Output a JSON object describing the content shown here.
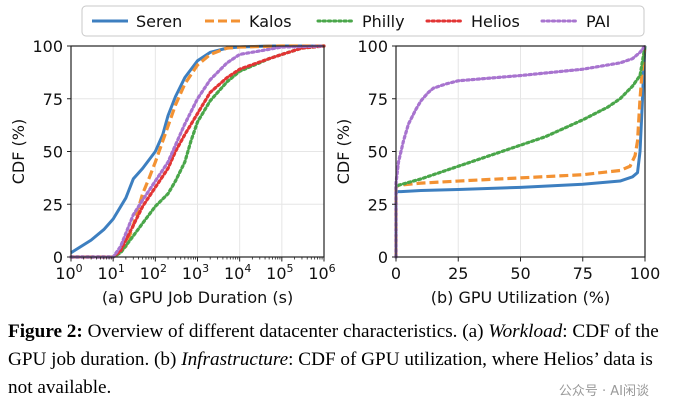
{
  "legend": {
    "entries": [
      {
        "name": "Seren",
        "color": "#3d7fc0",
        "style": "solid"
      },
      {
        "name": "Kalos",
        "color": "#f39233",
        "style": "dashed"
      },
      {
        "name": "Philly",
        "color": "#4aa64a",
        "style": "dotted"
      },
      {
        "name": "Helios",
        "color": "#e23434",
        "style": "dotted"
      },
      {
        "name": "PAI",
        "color": "#a874cf",
        "style": "dotted"
      }
    ],
    "placement": "top, spanning both panels"
  },
  "chart_data": [
    {
      "type": "line",
      "panel_label": "(a) GPU Job Duration (s)",
      "xlabel": "",
      "ylabel": "CDF (%)",
      "xscale": "log",
      "xlim": [
        1,
        1000000
      ],
      "ylim": [
        0,
        100
      ],
      "x_ticks": [
        {
          "value": 1,
          "base": "10",
          "exp": "0"
        },
        {
          "value": 10,
          "base": "10",
          "exp": "1"
        },
        {
          "value": 100,
          "base": "10",
          "exp": "2"
        },
        {
          "value": 1000,
          "base": "10",
          "exp": "3"
        },
        {
          "value": 10000,
          "base": "10",
          "exp": "4"
        },
        {
          "value": 100000,
          "base": "10",
          "exp": "5"
        },
        {
          "value": 1000000,
          "base": "10",
          "exp": "6"
        }
      ],
      "y_ticks": [
        "0",
        "25",
        "50",
        "75",
        "100"
      ],
      "grid": true,
      "series": [
        {
          "name": "Seren",
          "x": [
            1,
            3,
            6,
            10,
            20,
            30,
            50,
            100,
            150,
            200,
            300,
            500,
            1000,
            2000,
            5000,
            10000,
            50000,
            100000,
            1000000
          ],
          "y": [
            2,
            8,
            13,
            18,
            28,
            37,
            42,
            50,
            58,
            67,
            76,
            85,
            93,
            97,
            99,
            99.5,
            100,
            100,
            100
          ]
        },
        {
          "name": "Kalos",
          "x": [
            1,
            10,
            20,
            30,
            50,
            70,
            100,
            200,
            300,
            500,
            1000,
            2000,
            5000,
            10000,
            100000,
            1000000
          ],
          "y": [
            0,
            0,
            5,
            15,
            30,
            37,
            45,
            62,
            72,
            82,
            91,
            96,
            99,
            99.5,
            100,
            100
          ]
        },
        {
          "name": "Philly",
          "x": [
            1,
            10,
            15,
            30,
            50,
            100,
            200,
            300,
            500,
            700,
            1000,
            2000,
            5000,
            10000,
            50000,
            100000,
            300000,
            1000000
          ],
          "y": [
            0,
            0,
            2,
            10,
            16,
            24,
            30,
            36,
            45,
            55,
            64,
            74,
            83,
            88,
            94,
            96,
            99,
            100
          ]
        },
        {
          "name": "Helios",
          "x": [
            1,
            10,
            15,
            30,
            50,
            100,
            200,
            300,
            500,
            1000,
            2000,
            5000,
            10000,
            50000,
            100000,
            300000,
            1000000
          ],
          "y": [
            0,
            0,
            3,
            15,
            24,
            33,
            42,
            50,
            58,
            68,
            78,
            85,
            89,
            94,
            96,
            99,
            100
          ]
        },
        {
          "name": "PAI",
          "x": [
            1,
            10,
            15,
            30,
            50,
            100,
            200,
            300,
            500,
            1000,
            2000,
            5000,
            10000,
            100000,
            1000000
          ],
          "y": [
            0,
            0,
            5,
            20,
            27,
            36,
            45,
            53,
            63,
            75,
            84,
            92,
            96,
            99.5,
            100
          ]
        }
      ]
    },
    {
      "type": "line",
      "panel_label": "(b) GPU Utilization (%)",
      "xlabel": "",
      "ylabel": "CDF (%)",
      "xlim": [
        0,
        100
      ],
      "ylim": [
        0,
        100
      ],
      "x_ticks": [
        "0",
        "25",
        "50",
        "75",
        "100"
      ],
      "y_ticks": [
        "0",
        "25",
        "50",
        "75",
        "100"
      ],
      "grid": true,
      "series": [
        {
          "name": "Seren",
          "x": [
            0,
            0,
            0.5,
            2,
            10,
            25,
            50,
            75,
            90,
            95,
            97,
            98,
            99,
            99.5,
            100
          ],
          "y": [
            0,
            30,
            31,
            31,
            31.5,
            32,
            33,
            34.5,
            36,
            38,
            40,
            50,
            75,
            90,
            100
          ]
        },
        {
          "name": "Kalos",
          "x": [
            0,
            0,
            1,
            10,
            25,
            50,
            75,
            90,
            94,
            96,
            97,
            98,
            99,
            100
          ],
          "y": [
            0,
            33,
            34,
            35,
            36,
            37.5,
            39,
            41,
            43,
            48,
            55,
            75,
            90,
            100
          ]
        },
        {
          "name": "Philly",
          "x": [
            0,
            0,
            1,
            10,
            25,
            40,
            50,
            60,
            75,
            85,
            90,
            95,
            98,
            100
          ],
          "y": [
            0,
            33,
            34,
            37,
            43,
            49,
            53,
            57,
            65,
            71,
            75,
            81,
            86,
            100
          ]
        },
        {
          "name": "PAI",
          "x": [
            0,
            0,
            1,
            3,
            5,
            8,
            10,
            13,
            15,
            20,
            25,
            50,
            75,
            90,
            95,
            98,
            100
          ],
          "y": [
            0,
            35,
            45,
            55,
            63,
            70,
            74,
            78,
            80,
            82,
            83.5,
            86,
            89,
            92,
            94,
            97,
            100
          ]
        }
      ]
    }
  ],
  "caption": {
    "label": "Figure 2:",
    "text1": " Overview of different datacenter characteristics. (a) ",
    "term1": "Workload",
    "text2": ": CDF of the GPU job duration. (b) ",
    "term2": "Infrastructure",
    "text3": ": CDF of GPU utilization, where Helios’ data is not available."
  },
  "watermark": "公众号 · AI闲谈"
}
